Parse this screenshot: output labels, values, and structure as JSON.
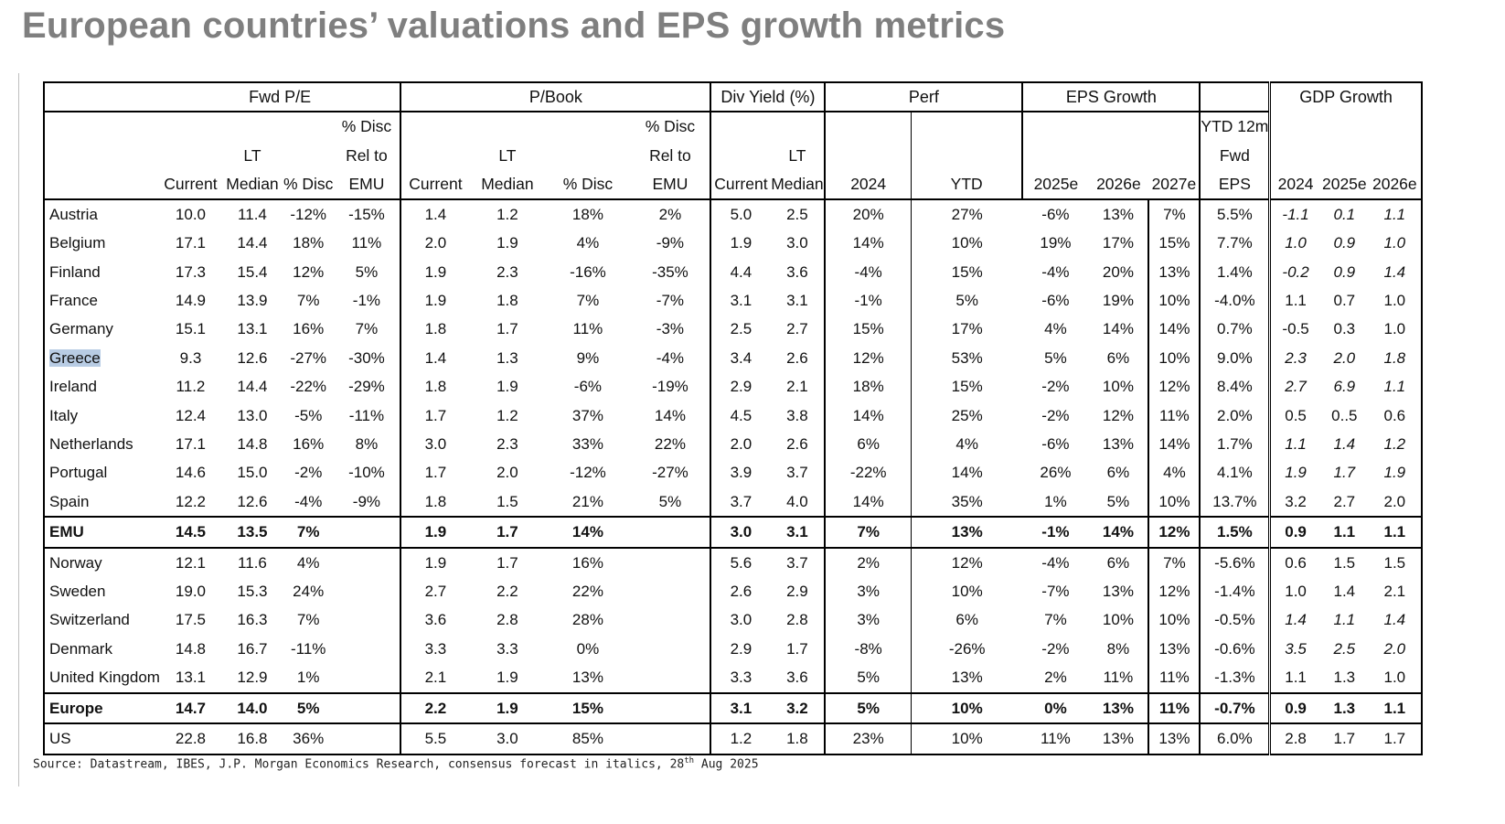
{
  "title": "European countries’ valuations and EPS growth metrics",
  "groups": {
    "fwd_pe": "Fwd P/E",
    "pbook": "P/Book",
    "div": "Div Yield (%)",
    "perf": "Perf",
    "eps": "EPS Growth",
    "gdp": "GDP Growth"
  },
  "subheaders": {
    "pct_disc_line1": "% Disc",
    "rel_to": "Rel to",
    "emu": "EMU",
    "lt": "LT",
    "median": "Median",
    "current": "Current",
    "pct_disc": "% Disc",
    "ytd12m": "YTD 12m",
    "fwd": "Fwd",
    "eps_label": "EPS",
    "y2024": "2024",
    "ytd": "YTD",
    "y2025e": "2025e",
    "y2026e": "2026e",
    "y2027e": "2027e"
  },
  "rows": [
    {
      "name": "Austria",
      "v": [
        "10.0",
        "11.4",
        "-12%",
        "-15%",
        "1.4",
        "1.2",
        "18%",
        "2%",
        "5.0",
        "2.5",
        "20%",
        "27%",
        "-6%",
        "13%",
        "7%",
        "5.5%",
        "-1.1",
        "0.1",
        "1.1"
      ],
      "gdp_italic": true
    },
    {
      "name": "Belgium",
      "v": [
        "17.1",
        "14.4",
        "18%",
        "11%",
        "2.0",
        "1.9",
        "4%",
        "-9%",
        "1.9",
        "3.0",
        "14%",
        "10%",
        "19%",
        "17%",
        "15%",
        "7.7%",
        "1.0",
        "0.9",
        "1.0"
      ],
      "gdp_italic": true
    },
    {
      "name": "Finland",
      "v": [
        "17.3",
        "15.4",
        "12%",
        "5%",
        "1.9",
        "2.3",
        "-16%",
        "-35%",
        "4.4",
        "3.6",
        "-4%",
        "15%",
        "-4%",
        "20%",
        "13%",
        "1.4%",
        "-0.2",
        "0.9",
        "1.4"
      ],
      "gdp_italic": true
    },
    {
      "name": "France",
      "v": [
        "14.9",
        "13.9",
        "7%",
        "-1%",
        "1.9",
        "1.8",
        "7%",
        "-7%",
        "3.1",
        "3.1",
        "-1%",
        "5%",
        "-6%",
        "19%",
        "10%",
        "-4.0%",
        "1.1",
        "0.7",
        "1.0"
      ],
      "gdp_italic": false
    },
    {
      "name": "Germany",
      "v": [
        "15.1",
        "13.1",
        "16%",
        "7%",
        "1.8",
        "1.7",
        "11%",
        "-3%",
        "2.5",
        "2.7",
        "15%",
        "17%",
        "4%",
        "14%",
        "14%",
        "0.7%",
        "-0.5",
        "0.3",
        "1.0"
      ],
      "gdp_italic": false
    },
    {
      "name": "Greece",
      "v": [
        "9.3",
        "12.6",
        "-27%",
        "-30%",
        "1.4",
        "1.3",
        "9%",
        "-4%",
        "3.4",
        "2.6",
        "12%",
        "53%",
        "5%",
        "6%",
        "10%",
        "9.0%",
        "2.3",
        "2.0",
        "1.8"
      ],
      "gdp_italic": true,
      "highlight": true
    },
    {
      "name": "Ireland",
      "v": [
        "11.2",
        "14.4",
        "-22%",
        "-29%",
        "1.8",
        "1.9",
        "-6%",
        "-19%",
        "2.9",
        "2.1",
        "18%",
        "15%",
        "-2%",
        "10%",
        "12%",
        "8.4%",
        "2.7",
        "6.9",
        "1.1"
      ],
      "gdp_italic": true
    },
    {
      "name": "Italy",
      "v": [
        "12.4",
        "13.0",
        "-5%",
        "-11%",
        "1.7",
        "1.2",
        "37%",
        "14%",
        "4.5",
        "3.8",
        "14%",
        "25%",
        "-2%",
        "12%",
        "11%",
        "2.0%",
        "0.5",
        "0..5",
        "0.6"
      ],
      "gdp_italic": false
    },
    {
      "name": "Netherlands",
      "v": [
        "17.1",
        "14.8",
        "16%",
        "8%",
        "3.0",
        "2.3",
        "33%",
        "22%",
        "2.0",
        "2.6",
        "6%",
        "4%",
        "-6%",
        "13%",
        "14%",
        "1.7%",
        "1.1",
        "1.4",
        "1.2"
      ],
      "gdp_italic": true
    },
    {
      "name": "Portugal",
      "v": [
        "14.6",
        "15.0",
        "-2%",
        "-10%",
        "1.7",
        "2.0",
        "-12%",
        "-27%",
        "3.9",
        "3.7",
        "-22%",
        "14%",
        "26%",
        "6%",
        "4%",
        "4.1%",
        "1.9",
        "1.7",
        "1.9"
      ],
      "gdp_italic": true
    },
    {
      "name": "Spain",
      "v": [
        "12.2",
        "12.6",
        "-4%",
        "-9%",
        "1.8",
        "1.5",
        "21%",
        "5%",
        "3.7",
        "4.0",
        "14%",
        "35%",
        "1%",
        "5%",
        "10%",
        "13.7%",
        "3.2",
        "2.7",
        "2.0"
      ],
      "gdp_italic": false
    },
    {
      "name": "EMU",
      "v": [
        "14.5",
        "13.5",
        "7%",
        "",
        "1.9",
        "1.7",
        "14%",
        "",
        "3.0",
        "3.1",
        "7%",
        "13%",
        "-1%",
        "14%",
        "12%",
        "1.5%",
        "0.9",
        "1.1",
        "1.1"
      ],
      "gdp_italic": false,
      "bold": true,
      "sep": true
    },
    {
      "name": "Norway",
      "v": [
        "12.1",
        "11.6",
        "4%",
        "",
        "1.9",
        "1.7",
        "16%",
        "",
        "5.6",
        "3.7",
        "2%",
        "12%",
        "-4%",
        "6%",
        "7%",
        "-5.6%",
        "0.6",
        "1.5",
        "1.5"
      ],
      "gdp_italic": false,
      "sep": true
    },
    {
      "name": "Sweden",
      "v": [
        "19.0",
        "15.3",
        "24%",
        "",
        "2.7",
        "2.2",
        "22%",
        "",
        "2.6",
        "2.9",
        "3%",
        "10%",
        "-7%",
        "13%",
        "12%",
        "-1.4%",
        "1.0",
        "1.4",
        "2.1"
      ],
      "gdp_italic": false
    },
    {
      "name": "Switzerland",
      "v": [
        "17.5",
        "16.3",
        "7%",
        "",
        "3.6",
        "2.8",
        "28%",
        "",
        "3.0",
        "2.8",
        "3%",
        "6%",
        "7%",
        "10%",
        "10%",
        "-0.5%",
        "1.4",
        "1.1",
        "1.4"
      ],
      "gdp_italic": true
    },
    {
      "name": "Denmark",
      "v": [
        "14.8",
        "16.7",
        "-11%",
        "",
        "3.3",
        "3.3",
        "0%",
        "",
        "2.9",
        "1.7",
        "-8%",
        "-26%",
        "-2%",
        "8%",
        "13%",
        "-0.6%",
        "3.5",
        "2.5",
        "2.0"
      ],
      "gdp_italic": true
    },
    {
      "name": "United Kingdom",
      "v": [
        "13.1",
        "12.9",
        "1%",
        "",
        "2.1",
        "1.9",
        "13%",
        "",
        "3.3",
        "3.6",
        "5%",
        "13%",
        "2%",
        "11%",
        "11%",
        "-1.3%",
        "1.1",
        "1.3",
        "1.0"
      ],
      "gdp_italic": false
    },
    {
      "name": "Europe",
      "v": [
        "14.7",
        "14.0",
        "5%",
        "",
        "2.2",
        "1.9",
        "15%",
        "",
        "3.1",
        "3.2",
        "5%",
        "10%",
        "0%",
        "13%",
        "11%",
        "-0.7%",
        "0.9",
        "1.3",
        "1.1"
      ],
      "gdp_italic": false,
      "bold": true,
      "sep": true
    },
    {
      "name": "US",
      "v": [
        "22.8",
        "16.8",
        "36%",
        "",
        "5.5",
        "3.0",
        "85%",
        "",
        "1.2",
        "1.8",
        "23%",
        "10%",
        "11%",
        "13%",
        "13%",
        "6.0%",
        "2.8",
        "1.7",
        "1.7"
      ],
      "gdp_italic": false,
      "sep": true
    }
  ],
  "source": {
    "text": "Source: Datastream, IBES, J.P. Morgan Economics Research, consensus forecast in italics, 28",
    "sup": "th",
    "tail": " Aug 2025"
  }
}
